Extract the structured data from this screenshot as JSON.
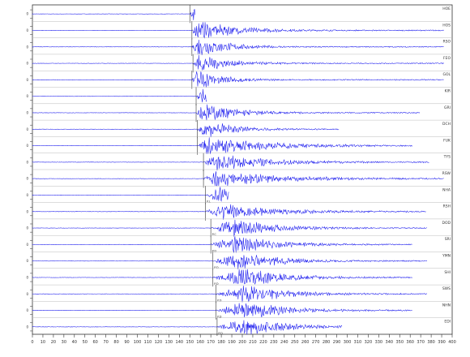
{
  "chart_data": {
    "type": "line",
    "title": "",
    "xlabel": "",
    "ylabel": "",
    "x_ticks": [
      "0",
      "10",
      "20",
      "30",
      "40",
      "50",
      "60",
      "70",
      "80",
      "90",
      "100",
      "110",
      "120",
      "130",
      "140",
      "150",
      "160",
      "170",
      "180",
      "190",
      "200",
      "210",
      "220",
      "230",
      "240",
      "250",
      "260",
      "270",
      "280",
      "290",
      "300",
      "310",
      "320",
      "330",
      "340",
      "350",
      "360",
      "370",
      "380",
      "390",
      "400"
    ],
    "xlim": [
      0,
      400
    ],
    "grid": false,
    "traces": [
      {
        "station": "HOE",
        "onset": 150,
        "peak_t": 153,
        "peak": 0.95,
        "end": 155,
        "decay": 2.2,
        "cutoff": true,
        "phase": ""
      },
      {
        "station": "HOS",
        "onset": 152,
        "peak_t": 158,
        "peak": 0.9,
        "end": 392,
        "decay": 35,
        "cutoff": false,
        "phase": ""
      },
      {
        "station": "RSO",
        "onset": 152,
        "peak_t": 157,
        "peak": 0.9,
        "end": 392,
        "decay": 28,
        "cutoff": false,
        "phase": ""
      },
      {
        "station": "FEO",
        "onset": 153,
        "peak_t": 158,
        "peak": 0.9,
        "end": 392,
        "decay": 26,
        "cutoff": false,
        "phase": ""
      },
      {
        "station": "GOL",
        "onset": 152,
        "peak_t": 157,
        "peak": 1.0,
        "end": 392,
        "decay": 22,
        "cutoff": false,
        "phase": ""
      },
      {
        "station": "KIR",
        "onset": 156,
        "peak_t": 162,
        "peak": 0.8,
        "end": 166,
        "decay": 6,
        "cutoff": true,
        "phase": ""
      },
      {
        "station": "GRI",
        "onset": 156,
        "peak_t": 163,
        "peak": 0.9,
        "end": 369,
        "decay": 32,
        "cutoff": false,
        "phase": ""
      },
      {
        "station": "DCH",
        "onset": 157,
        "peak_t": 164,
        "peak": 0.9,
        "end": 292,
        "decay": 26,
        "cutoff": false,
        "phase": ""
      },
      {
        "station": "FUK",
        "onset": 157,
        "peak_t": 165,
        "peak": 0.9,
        "end": 362,
        "decay": 55,
        "cutoff": false,
        "phase": ""
      },
      {
        "station": "TYS",
        "onset": 163,
        "peak_t": 176,
        "peak": 0.75,
        "end": 378,
        "decay": 48,
        "cutoff": false,
        "phase": ""
      },
      {
        "station": "RSW",
        "onset": 163,
        "peak_t": 176,
        "peak": 0.75,
        "end": 392,
        "decay": 55,
        "cutoff": false,
        "phase": ""
      },
      {
        "station": "NHA",
        "onset": 165,
        "peak_t": 180,
        "peak": 0.9,
        "end": 187,
        "decay": 10,
        "cutoff": true,
        "phase": "P.L"
      },
      {
        "station": "RSH",
        "onset": 165,
        "peak_t": 180,
        "peak": 0.7,
        "end": 375,
        "decay": 50,
        "cutoff": false,
        "phase": ""
      },
      {
        "station": "DOD",
        "onset": 170,
        "peak_t": 193,
        "peak": 0.9,
        "end": 376,
        "decay": 35,
        "cutoff": false,
        "phase": "P.C"
      },
      {
        "station": "SRI",
        "onset": 170,
        "peak_t": 193,
        "peak": 0.9,
        "end": 362,
        "decay": 35,
        "cutoff": false,
        "phase": "P.D"
      },
      {
        "station": "YMN",
        "onset": 172,
        "peak_t": 198,
        "peak": 0.9,
        "end": 376,
        "decay": 35,
        "cutoff": false,
        "phase": "P.D"
      },
      {
        "station": "SHI",
        "onset": 172,
        "peak_t": 205,
        "peak": 0.9,
        "end": 362,
        "decay": 35,
        "cutoff": false,
        "phase": "P.D"
      },
      {
        "station": "SWS",
        "onset": 175,
        "peak_t": 205,
        "peak": 0.85,
        "end": 376,
        "decay": 35,
        "cutoff": false,
        "phase": "P.D"
      },
      {
        "station": "NHN",
        "onset": 175,
        "peak_t": 205,
        "peak": 0.85,
        "end": 362,
        "decay": 35,
        "cutoff": false,
        "phase": "P.D"
      },
      {
        "station": "EDI",
        "onset": 176,
        "peak_t": 205,
        "peak": 0.85,
        "end": 295,
        "decay": 35,
        "cutoff": false,
        "phase": "P.D"
      }
    ]
  },
  "colors": {
    "trace": "#1a1aee",
    "axis": "#333333",
    "label": "#333333"
  }
}
